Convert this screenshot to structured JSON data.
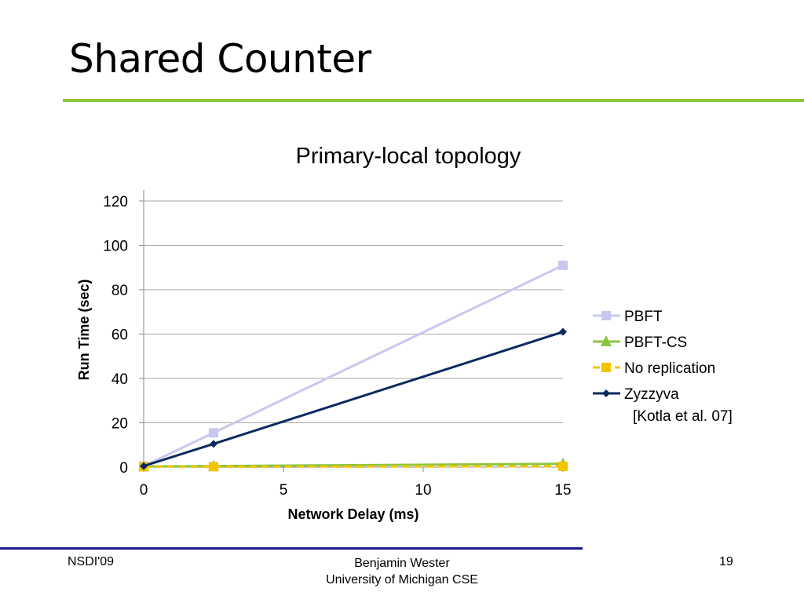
{
  "slide": {
    "title": "Shared Counter",
    "citation": "[Kotla et al. 07]",
    "accent_color": "#8cc63f"
  },
  "footer": {
    "left": "NSDI'09",
    "center_line1": "Benjamin Wester",
    "center_line2": "University of Michigan CSE",
    "page": "19"
  },
  "chart_data": {
    "type": "line",
    "title": "Primary-local topology",
    "xlabel": "Network Delay (ms)",
    "ylabel": "Run Time (sec)",
    "xlim": [
      0,
      15
    ],
    "ylim": [
      0,
      120
    ],
    "xticks": [
      "0",
      "5",
      "10",
      "15"
    ],
    "yticks": [
      "0",
      "20",
      "40",
      "60",
      "80",
      "100",
      "120"
    ],
    "grid": true,
    "legend_position": "right",
    "series": [
      {
        "name": "PBFT",
        "x": [
          0,
          2.5,
          15
        ],
        "y": [
          0.5,
          15.5,
          91
        ],
        "color": "#c8c8ee",
        "marker": "square",
        "dash": false
      },
      {
        "name": "PBFT-CS",
        "x": [
          0,
          2.5,
          15
        ],
        "y": [
          0.3,
          0.5,
          1.5
        ],
        "color": "#8cc63f",
        "marker": "triangle",
        "dash": false
      },
      {
        "name": "No replication",
        "x": [
          0,
          2.5,
          15
        ],
        "y": [
          0.2,
          0.2,
          0.4
        ],
        "color": "#f5c400",
        "marker": "square",
        "dash": true
      },
      {
        "name": "Zyzzyva",
        "x": [
          0,
          2.5,
          15
        ],
        "y": [
          0.5,
          10.5,
          61
        ],
        "color": "#0b2a5e",
        "marker": "diamond",
        "dash": false
      }
    ]
  }
}
